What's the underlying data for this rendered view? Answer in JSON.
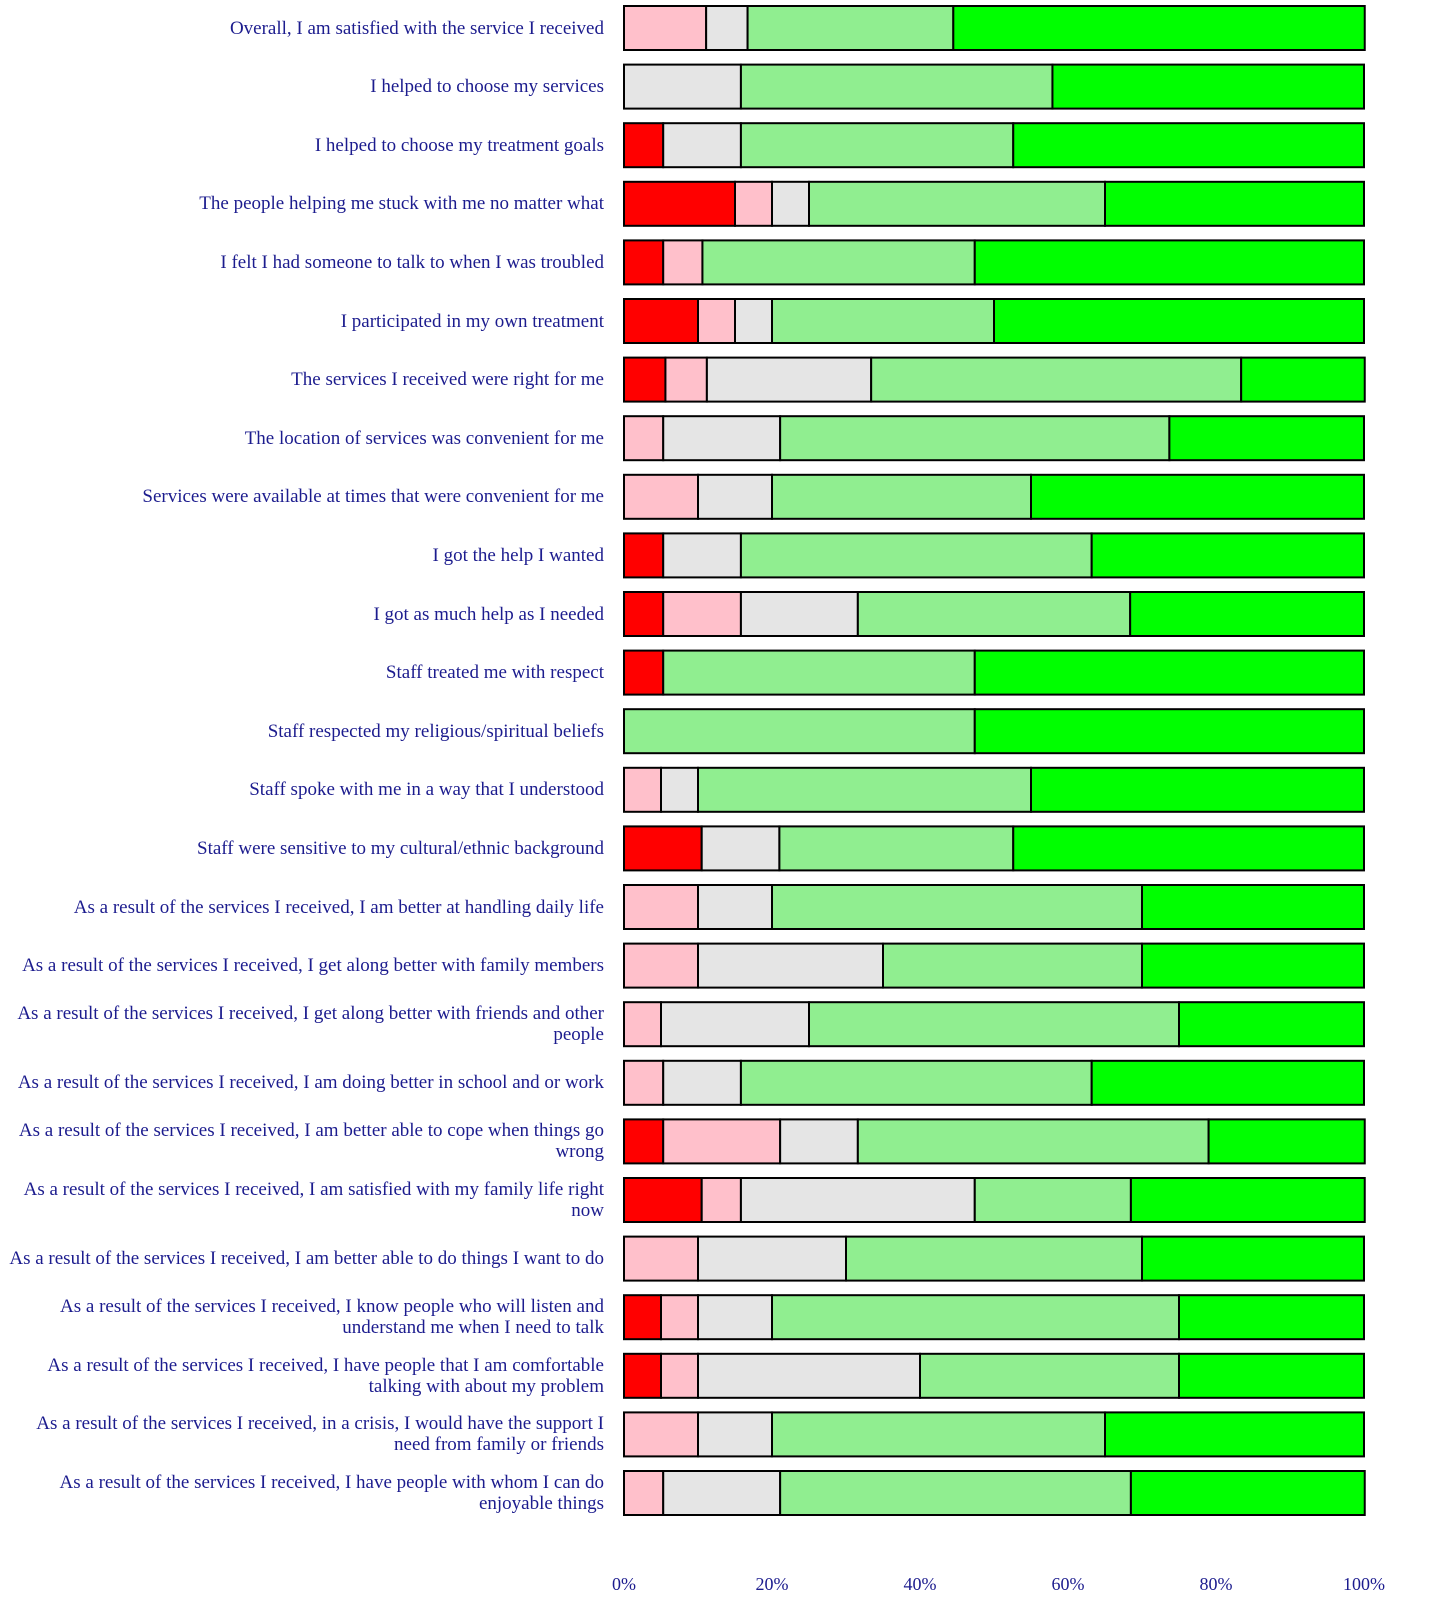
{
  "chart_data": {
    "type": "stacked-bar-horizontal",
    "categories": [
      "Overall, I am satisfied with the service I received",
      "I helped to choose my services",
      "I helped to choose my treatment goals",
      "The people helping me stuck with me no matter what",
      "I felt I had someone to talk to when I was troubled",
      "I participated in my own treatment",
      "The services I received were right for me",
      "The location of services was convenient for me",
      "Services were available at times that were convenient for me",
      "I got the help I wanted",
      "I got as much help as I needed",
      "Staff treated me with respect",
      "Staff respected my religious/spiritual beliefs",
      "Staff spoke with me in a way that I understood",
      "Staff were sensitive to my cultural/ethnic background",
      "As a result of the services I received, I am better at handling daily life",
      "As a result of the services I received, I get along better with family members",
      "As a result of the services I received, I get along better with friends and other people",
      "As a result of the services I received, I am doing better in school and or work",
      "As a result of the services I received, I am better able to cope when things go wrong",
      "As a result of the services I received, I am satisfied with my family life right now",
      "As a result of the services I received, I am better able to do things I want to do",
      "As a result of the services I received, I know people who will listen and understand me when I need to talk",
      "As a result of the services I received, I have people that I am comfortable talking with about my problem",
      "As a result of the services I received, in a crisis, I would have the support I need from family or friends",
      "As a result of the services I received, I have people with whom I can do enjoyable things"
    ],
    "series": [
      {
        "color": "#ff0000",
        "values": [
          0,
          0,
          5.3,
          15,
          5.3,
          10,
          5.6,
          0,
          0,
          5.3,
          5.3,
          5.3,
          0,
          0,
          10.5,
          0,
          0,
          0,
          0,
          5.3,
          10.5,
          0,
          5,
          5,
          0,
          0
        ]
      },
      {
        "color": "#ffc0cb",
        "values": [
          11.1,
          0,
          0,
          5,
          5.3,
          5,
          5.6,
          5.3,
          10,
          0,
          10.5,
          0,
          0,
          5,
          0,
          10,
          10,
          5,
          5.3,
          15.8,
          5.3,
          10,
          5,
          5,
          10,
          5.3
        ]
      },
      {
        "color": "#e5e5e5",
        "values": [
          5.6,
          15.8,
          10.5,
          5,
          0,
          5,
          22.2,
          15.8,
          10,
          10.5,
          15.8,
          0,
          0,
          5,
          10.5,
          10,
          25,
          20,
          10.5,
          10.5,
          31.6,
          20,
          10,
          30,
          10,
          15.8
        ]
      },
      {
        "color": "#90ee90",
        "values": [
          27.8,
          42.1,
          36.8,
          40,
          36.8,
          30,
          50,
          52.6,
          35,
          47.4,
          36.8,
          42.1,
          47.4,
          45,
          31.6,
          50,
          35,
          50,
          47.4,
          47.4,
          21.1,
          40,
          55,
          35,
          45,
          47.4
        ]
      },
      {
        "color": "#00ff00",
        "values": [
          55.6,
          42.1,
          47.4,
          35,
          52.6,
          50,
          16.7,
          26.3,
          45,
          36.8,
          31.6,
          52.6,
          52.6,
          45,
          47.4,
          30,
          30,
          25,
          36.8,
          21.1,
          31.6,
          30,
          25,
          25,
          35,
          31.6
        ]
      }
    ],
    "xlim": [
      0,
      100
    ],
    "xticks": [
      {
        "value": 0,
        "label": "0%"
      },
      {
        "value": 20,
        "label": "20%"
      },
      {
        "value": 40,
        "label": "40%"
      },
      {
        "value": 60,
        "label": "60%"
      },
      {
        "value": 80,
        "label": "80%"
      },
      {
        "value": 100,
        "label": "100%"
      }
    ]
  }
}
